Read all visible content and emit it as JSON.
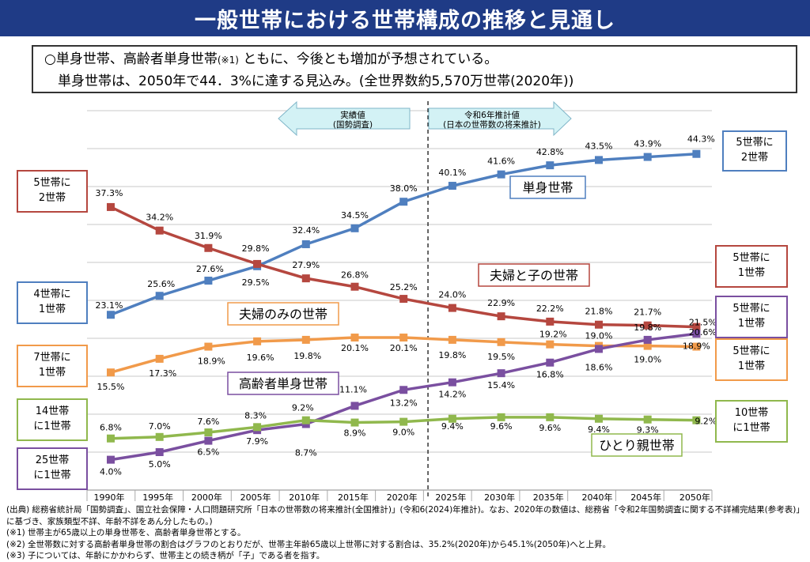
{
  "title": "一般世帯における世帯構成の推移と見通し",
  "summary": {
    "line1_pre": "○単身世帯、高齢者単身世帯",
    "line1_note": "(※1)",
    "line1_post": " ともに、今後とも増加が予想されている。",
    "line2": "　単身世帯は、2050年で44．3%に達する見込み。(全世界数約5,570万世帯(2020年))"
  },
  "arrows": {
    "actual": [
      "実績値",
      "(国勢調査)"
    ],
    "projection": [
      "令和6年推計値",
      "(日本の世帯数の将来推計)"
    ]
  },
  "colors": {
    "single": "#4f7fbf",
    "couple_children": "#b5473f",
    "couple_only": "#f19a4a",
    "elderly_single": "#7a4fa0",
    "single_parent": "#90b84d",
    "arrow_fill": "#d3f2f5",
    "arrow_stroke": "#7fb5c8"
  },
  "chart_data": {
    "type": "line",
    "x": [
      "1990年",
      "1995年",
      "2000年",
      "2005年",
      "2010年",
      "2015年",
      "2020年",
      "2025年",
      "2030年",
      "2035年",
      "2040年",
      "2045年",
      "2050年"
    ],
    "ylim": [
      0,
      50
    ],
    "grid": true,
    "divider_between": [
      "2020年",
      "2025年"
    ],
    "series": [
      {
        "name": "単身世帯",
        "color_key": "single",
        "values": [
          23.1,
          25.6,
          27.6,
          29.5,
          32.4,
          34.5,
          38.0,
          40.1,
          41.6,
          42.8,
          43.5,
          43.9,
          44.3
        ]
      },
      {
        "name": "夫婦と子の世帯",
        "color_key": "couple_children",
        "values": [
          37.3,
          34.2,
          31.9,
          29.8,
          27.9,
          26.8,
          25.2,
          24.0,
          22.9,
          22.2,
          21.8,
          21.7,
          21.5
        ]
      },
      {
        "name": "夫婦のみの世帯",
        "color_key": "couple_only",
        "values": [
          15.5,
          17.3,
          18.9,
          19.6,
          19.8,
          20.1,
          20.1,
          19.8,
          19.5,
          19.2,
          19.0,
          19.0,
          18.9
        ]
      },
      {
        "name": "高齢者単身世帯",
        "color_key": "elderly_single",
        "values": [
          4.0,
          5.0,
          6.5,
          7.9,
          8.7,
          11.1,
          13.2,
          14.2,
          15.4,
          16.8,
          18.6,
          19.8,
          20.6
        ]
      },
      {
        "name": "ひとり親世帯",
        "color_key": "single_parent",
        "values": [
          6.8,
          7.0,
          7.6,
          8.3,
          9.2,
          8.9,
          9.0,
          9.4,
          9.6,
          9.6,
          9.4,
          9.3,
          9.2
        ]
      }
    ],
    "left_labels": [
      {
        "text": "5世帯に\n2世帯",
        "color_key": "couple_children"
      },
      {
        "text": "4世帯に\n1世帯",
        "color_key": "single"
      },
      {
        "text": "7世帯に\n1世帯",
        "color_key": "couple_only"
      },
      {
        "text": "14世帯\nに1世帯",
        "color_key": "single_parent"
      },
      {
        "text": "25世帯\nに1世帯",
        "color_key": "elderly_single"
      }
    ],
    "right_labels": [
      {
        "text": "5世帯に\n2世帯",
        "color_key": "single"
      },
      {
        "text": "5世帯に\n1世帯",
        "color_key": "couple_children"
      },
      {
        "text": "5世帯に\n1世帯",
        "color_key": "elderly_single"
      },
      {
        "text": "5世帯に\n1世帯",
        "color_key": "couple_only"
      },
      {
        "text": "10世帯\nに1世帯",
        "color_key": "single_parent"
      }
    ]
  },
  "notes": [
    "(出典) 総務省統計局「国勢調査」、国立社会保障・人口問題研究所「日本の世帯数の将来推計(全国推計)」(令和6(2024)年推計)。なお、2020年の数値は、総務省「令和2年国勢調査に関する不詳補完結果(参考表)」に基づき、家族類型不詳、年齢不詳をあん分したもの。)",
    "(※1) 世帯主が65歳以上の単身世帯を、高齢者単身世帯とする。",
    "(※2) 全世帯数に対する高齢者単身世帯の割合はグラフのとおりだが、世帯主年齢65歳以上世帯に対する割合は、35.2%(2020年)から45.1%(2050年)へと上昇。",
    "(※3) 子については、年齢にかかわらず、世帯主との続き柄が「子」である者を指す。"
  ]
}
